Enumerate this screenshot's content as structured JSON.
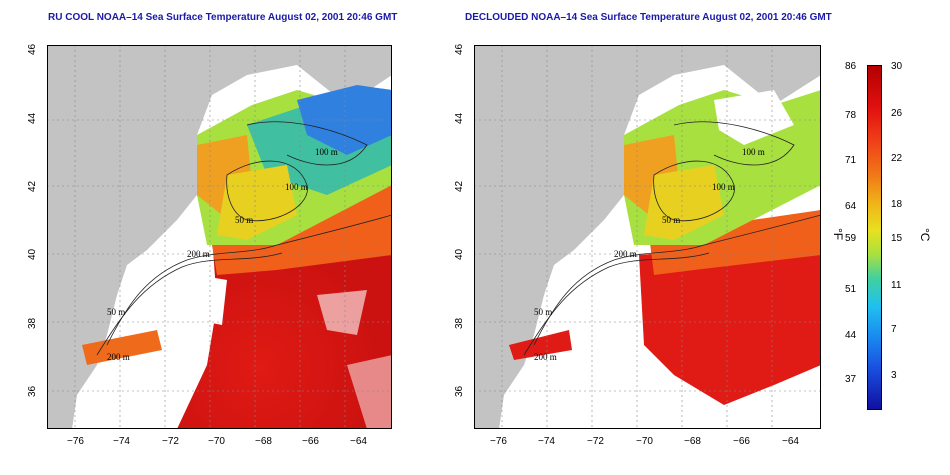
{
  "titles": {
    "left": "RU COOL NOAA–14 Sea Surface Temperature August 02, 2001 20:46 GMT",
    "right": "DECLOUDED NOAA–14 Sea Surface Temperature August 02, 2001 20:46 GMT"
  },
  "x_ticks": [
    "−76",
    "−74",
    "−72",
    "−70",
    "−68",
    "−66",
    "−64"
  ],
  "y_ticks": [
    "46",
    "44",
    "42",
    "40",
    "38",
    "36"
  ],
  "contour_labels": [
    "100 m",
    "100 m",
    "50 m",
    "200 m",
    "50 m",
    "200 m"
  ],
  "colorbar": {
    "f_labels": [
      "86",
      "78",
      "71",
      "64",
      "59",
      "51",
      "44",
      "37"
    ],
    "c_labels": [
      "30",
      "26",
      "22",
      "18",
      "15",
      "11",
      "7",
      "3"
    ],
    "unit_f": "°F",
    "unit_c": "°C"
  },
  "colors": {
    "land": "#c3c3c3",
    "title": "#1a1aa8",
    "warm": "#d81818",
    "cool": "#2266ee"
  }
}
